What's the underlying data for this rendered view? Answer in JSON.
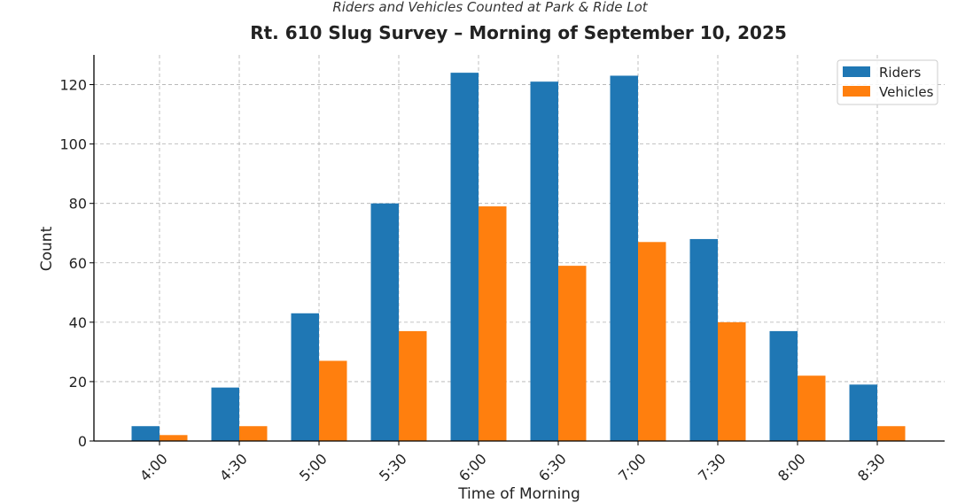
{
  "chart_data": {
    "type": "bar",
    "subtitle": "Riders and Vehicles Counted at Park & Ride Lot",
    "title": "Rt. 610 Slug Survey – Morning of September 10, 2025",
    "xlabel": "Time of Morning",
    "ylabel": "Count",
    "categories": [
      "4:00",
      "4:30",
      "5:00",
      "5:30",
      "6:00",
      "6:30",
      "7:00",
      "7:30",
      "8:00",
      "8:30"
    ],
    "series": [
      {
        "name": "Riders",
        "color": "#1f77b4",
        "values": [
          5,
          18,
          43,
          80,
          124,
          121,
          123,
          68,
          37,
          19
        ]
      },
      {
        "name": "Vehicles",
        "color": "#ff7f0e",
        "values": [
          2,
          5,
          27,
          37,
          79,
          59,
          67,
          40,
          22,
          5
        ]
      }
    ],
    "ylim": [
      0,
      130
    ],
    "yticks": [
      0,
      20,
      40,
      60,
      80,
      100,
      120
    ],
    "grid": true,
    "legend_position": "top-right"
  }
}
